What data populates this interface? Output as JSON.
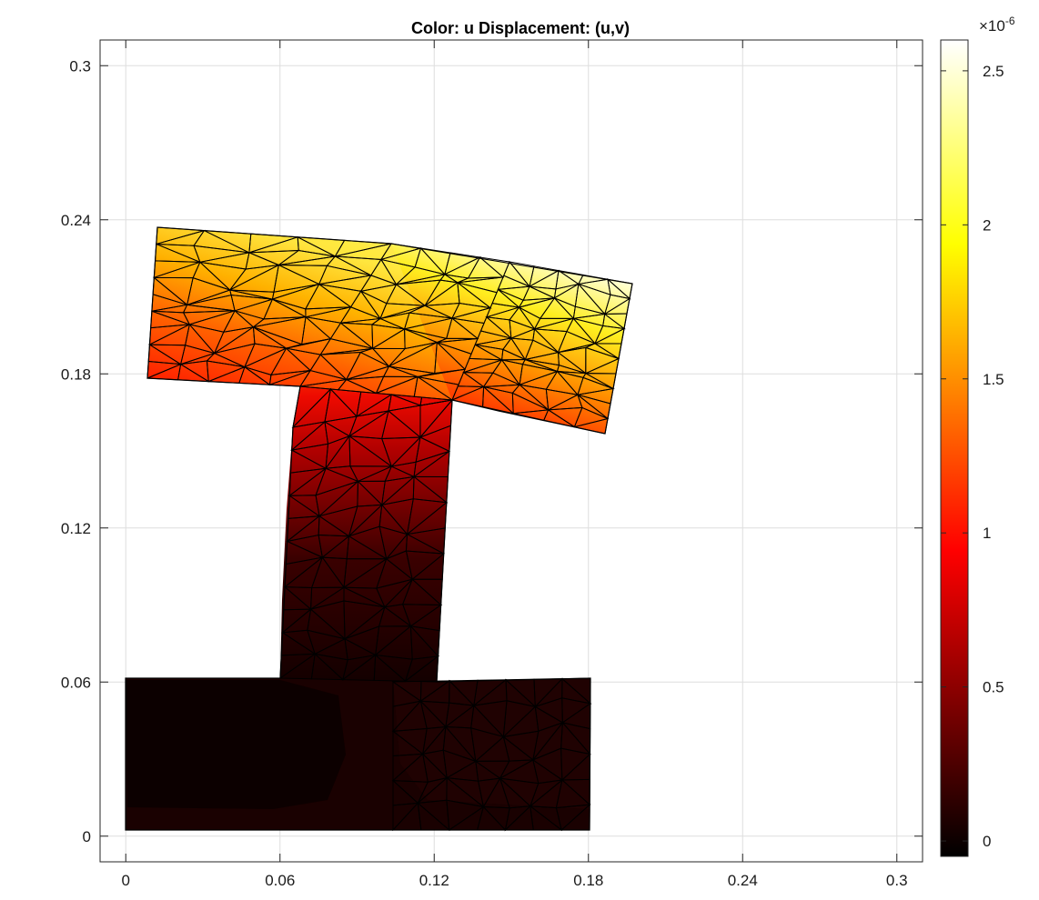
{
  "chart_data": {
    "type": "heatmap",
    "title": "Color: u  Displacement: (u,v)",
    "xlabel": "",
    "ylabel": "",
    "xlim": [
      -0.01,
      0.31
    ],
    "ylim": [
      -0.01,
      0.31
    ],
    "grid": true,
    "x_ticks": [
      0,
      0.06,
      0.12,
      0.18,
      0.24,
      0.3
    ],
    "x_tick_labels": [
      "0",
      "0.06",
      "0.12",
      "0.18",
      "0.24",
      "0.3"
    ],
    "y_ticks": [
      0,
      0.06,
      0.12,
      0.18,
      0.24,
      0.3
    ],
    "y_tick_labels": [
      "0",
      "0.06",
      "0.12",
      "0.18",
      "0.24",
      "0.3"
    ],
    "colormap": "hot",
    "colorbar": {
      "min": -0.05,
      "max": 2.6,
      "ticks": [
        0,
        0.5,
        1,
        1.5,
        2,
        2.5
      ],
      "tick_labels": [
        "0",
        "0.5",
        "1",
        "1.5",
        "2",
        "2.5"
      ],
      "multiplier_base": "×10",
      "multiplier_exp": "-6"
    },
    "deformed_shape": {
      "base": [
        [
          0,
          0
        ],
        [
          0.18,
          0
        ],
        [
          0.18,
          0.06
        ],
        [
          0,
          0.06
        ]
      ],
      "stem": [
        [
          0.06,
          0.06
        ],
        [
          0.12,
          0.06
        ],
        [
          0.128,
          0.171
        ],
        [
          0.067,
          0.175
        ]
      ],
      "flange": [
        [
          0.008,
          0.179
        ],
        [
          0.012,
          0.238
        ],
        [
          0.105,
          0.232
        ],
        [
          0.196,
          0.216
        ],
        [
          0.186,
          0.156
        ],
        [
          0.14,
          0.167
        ],
        [
          0.067,
          0.175
        ]
      ]
    },
    "u_at_levels": [
      {
        "y": 0,
        "u": 0.05
      },
      {
        "y": 0.06,
        "u": 0.1
      },
      {
        "y": 0.1,
        "u": 0.3
      },
      {
        "y": 0.14,
        "u": 0.6
      },
      {
        "y": 0.17,
        "u": 1.0
      },
      {
        "y": 0.19,
        "u": 1.4
      },
      {
        "y": 0.215,
        "u": 2.0
      },
      {
        "y": 0.235,
        "u": 2.5
      }
    ]
  }
}
